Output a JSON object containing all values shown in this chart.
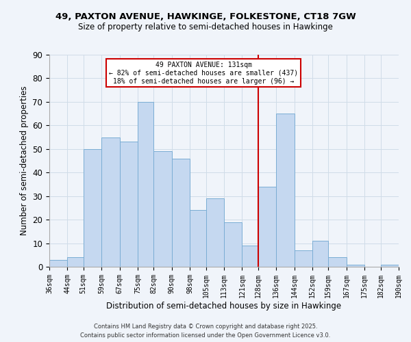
{
  "title": "49, PAXTON AVENUE, HAWKINGE, FOLKESTONE, CT18 7GW",
  "subtitle": "Size of property relative to semi-detached houses in Hawkinge",
  "xlabel": "Distribution of semi-detached houses by size in Hawkinge",
  "ylabel": "Number of semi-detached properties",
  "bins": [
    36,
    44,
    51,
    59,
    67,
    75,
    82,
    90,
    98,
    105,
    113,
    121,
    128,
    136,
    144,
    152,
    159,
    167,
    175,
    182,
    190
  ],
  "counts": [
    3,
    4,
    50,
    55,
    53,
    70,
    49,
    46,
    24,
    29,
    19,
    9,
    34,
    65,
    7,
    11,
    4,
    1,
    0,
    1
  ],
  "bar_color": "#c5d8f0",
  "bar_edge_color": "#7aadd4",
  "grid_color": "#d0dce8",
  "background_color": "#f0f4fa",
  "vline_x": 128,
  "vline_color": "#cc0000",
  "annotation_text": "49 PAXTON AVENUE: 131sqm\n← 82% of semi-detached houses are smaller (437)\n18% of semi-detached houses are larger (96) →",
  "annotation_box_color": "#cc0000",
  "ylim": [
    0,
    90
  ],
  "yticks": [
    0,
    10,
    20,
    30,
    40,
    50,
    60,
    70,
    80,
    90
  ],
  "tick_labels": [
    "36sqm",
    "44sqm",
    "51sqm",
    "59sqm",
    "67sqm",
    "75sqm",
    "82sqm",
    "90sqm",
    "98sqm",
    "105sqm",
    "113sqm",
    "121sqm",
    "128sqm",
    "136sqm",
    "144sqm",
    "152sqm",
    "159sqm",
    "167sqm",
    "175sqm",
    "182sqm",
    "190sqm"
  ],
  "footer1": "Contains HM Land Registry data © Crown copyright and database right 2025.",
  "footer2": "Contains public sector information licensed under the Open Government Licence v3.0."
}
